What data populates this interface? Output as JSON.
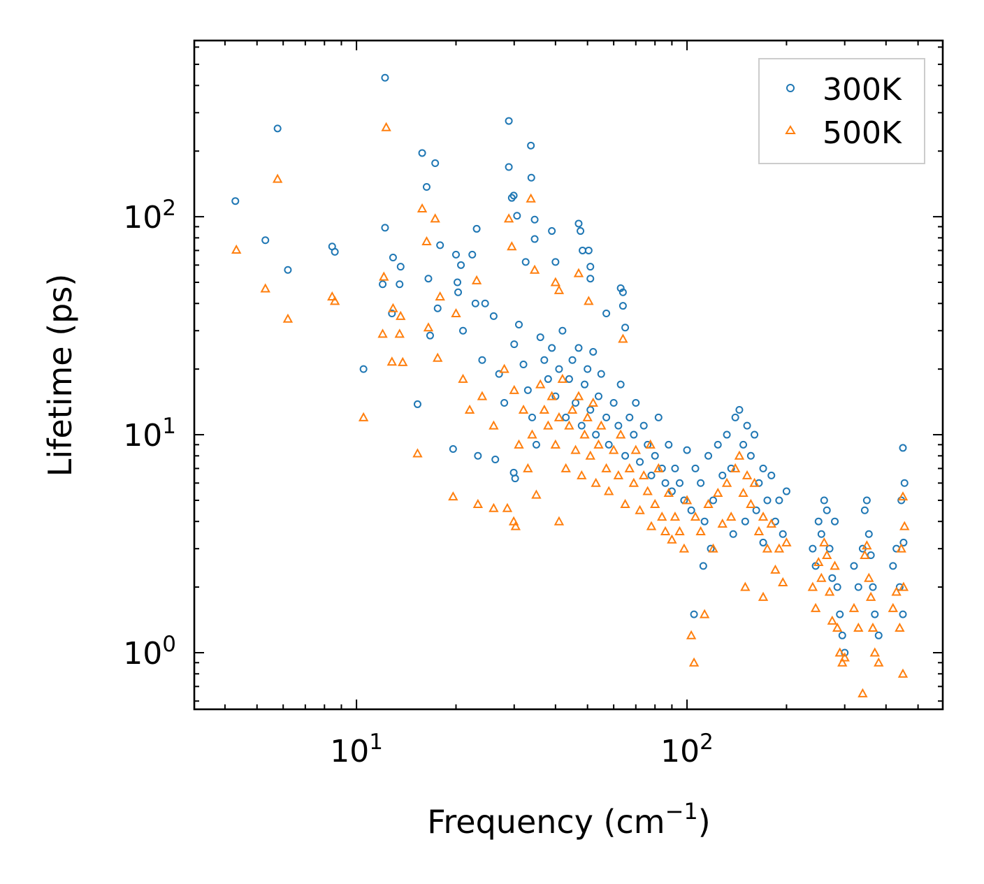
{
  "chart_data": {
    "type": "scatter",
    "title": "",
    "xlabel": "Frequency (cm",
    "xlabel_sup": "−1",
    "xlabel_close": ")",
    "ylabel": "Lifetime (ps)",
    "xscale": "log",
    "yscale": "log",
    "xlim": [
      3.23,
      594
    ],
    "ylim": [
      0.55,
      643
    ],
    "grid": false,
    "legend_position": "top-right",
    "x_ticks": [
      {
        "value": 10,
        "base": "10",
        "exp": "1"
      },
      {
        "value": 100,
        "base": "10",
        "exp": "2"
      }
    ],
    "y_ticks": [
      {
        "value": 1,
        "base": "10",
        "exp": "0"
      },
      {
        "value": 10,
        "base": "10",
        "exp": "1"
      },
      {
        "value": 100,
        "base": "10",
        "exp": "2"
      }
    ],
    "series": [
      {
        "name": "300K",
        "color": "#1f77b4",
        "marker": "circle",
        "points": [
          [
            4.3,
            118
          ],
          [
            5.3,
            78
          ],
          [
            5.77,
            254
          ],
          [
            6.2,
            57
          ],
          [
            8.44,
            73
          ],
          [
            8.6,
            69
          ],
          [
            10.5,
            20
          ],
          [
            12.2,
            434
          ],
          [
            12.2,
            89
          ],
          [
            12.0,
            49
          ],
          [
            12.9,
            65
          ],
          [
            13.5,
            49
          ],
          [
            13.6,
            59
          ],
          [
            12.8,
            36
          ],
          [
            15.3,
            13.8
          ],
          [
            15.8,
            196
          ],
          [
            16.3,
            137
          ],
          [
            16.5,
            52
          ],
          [
            17.3,
            176
          ],
          [
            17.9,
            74
          ],
          [
            16.7,
            28.5
          ],
          [
            17.6,
            38
          ],
          [
            19.6,
            8.6
          ],
          [
            20,
            67
          ],
          [
            20.7,
            60
          ],
          [
            20.2,
            50
          ],
          [
            20.3,
            45
          ],
          [
            22.4,
            67
          ],
          [
            23.1,
            88
          ],
          [
            22.9,
            40
          ],
          [
            23.3,
            8.0
          ],
          [
            24.5,
            40
          ],
          [
            28.9,
            275
          ],
          [
            28.9,
            169
          ],
          [
            29.5,
            122
          ],
          [
            29.9,
            125
          ],
          [
            30.6,
            101
          ],
          [
            33.7,
            212
          ],
          [
            33.8,
            151
          ],
          [
            34.6,
            97
          ],
          [
            34.6,
            79
          ],
          [
            32.5,
            62
          ],
          [
            39,
            86
          ],
          [
            40,
            62
          ],
          [
            47,
            93
          ],
          [
            47.6,
            86
          ],
          [
            48.3,
            70
          ],
          [
            50.4,
            70
          ],
          [
            51,
            59
          ],
          [
            51,
            52
          ],
          [
            63,
            47
          ],
          [
            64,
            45
          ],
          [
            64,
            39
          ],
          [
            57,
            36
          ],
          [
            65,
            31
          ],
          [
            29.9,
            6.7
          ],
          [
            30.2,
            6.3
          ],
          [
            26.3,
            7.7
          ],
          [
            21,
            30
          ],
          [
            24,
            22
          ],
          [
            26,
            35
          ],
          [
            27,
            19
          ],
          [
            28,
            14
          ],
          [
            30,
            26
          ],
          [
            31,
            32
          ],
          [
            32,
            21
          ],
          [
            33,
            16
          ],
          [
            34,
            12
          ],
          [
            35,
            9
          ],
          [
            36,
            28
          ],
          [
            37,
            22
          ],
          [
            38,
            18
          ],
          [
            39,
            25
          ],
          [
            40,
            15
          ],
          [
            41,
            20
          ],
          [
            42,
            30
          ],
          [
            43,
            12
          ],
          [
            44,
            18
          ],
          [
            45,
            22
          ],
          [
            46,
            14
          ],
          [
            47,
            25
          ],
          [
            48,
            11
          ],
          [
            49,
            17
          ],
          [
            50,
            20
          ],
          [
            51,
            13
          ],
          [
            52,
            24
          ],
          [
            53,
            10
          ],
          [
            54,
            15
          ],
          [
            55,
            19
          ],
          [
            57,
            12
          ],
          [
            58,
            9
          ],
          [
            60,
            14
          ],
          [
            62,
            11
          ],
          [
            63,
            17
          ],
          [
            65,
            8
          ],
          [
            67,
            12
          ],
          [
            69,
            10
          ],
          [
            70,
            14
          ],
          [
            72,
            7.5
          ],
          [
            74,
            11
          ],
          [
            76,
            9
          ],
          [
            78,
            6.5
          ],
          [
            80,
            8
          ],
          [
            82,
            12
          ],
          [
            84,
            7
          ],
          [
            86,
            6
          ],
          [
            88,
            9
          ],
          [
            90,
            5.5
          ],
          [
            92,
            7
          ],
          [
            95,
            6
          ],
          [
            98,
            5
          ],
          [
            100,
            8.5
          ],
          [
            103,
            4.5
          ],
          [
            106,
            7
          ],
          [
            110,
            6
          ],
          [
            113,
            4
          ],
          [
            116,
            8
          ],
          [
            120,
            5
          ],
          [
            124,
            9
          ],
          [
            128,
            6.5
          ],
          [
            132,
            10
          ],
          [
            136,
            7
          ],
          [
            140,
            12
          ],
          [
            144,
            13
          ],
          [
            148,
            9
          ],
          [
            152,
            11
          ],
          [
            156,
            8
          ],
          [
            160,
            10
          ],
          [
            165,
            6
          ],
          [
            170,
            7
          ],
          [
            175,
            5
          ],
          [
            180,
            6.5
          ],
          [
            185,
            4
          ],
          [
            190,
            5
          ],
          [
            195,
            3.5
          ],
          [
            200,
            5.5
          ],
          [
            105,
            1.5
          ],
          [
            112,
            2.5
          ],
          [
            118,
            3
          ],
          [
            138,
            3.5
          ],
          [
            150,
            4
          ],
          [
            162,
            4.5
          ],
          [
            170,
            3.2
          ],
          [
            240,
            3
          ],
          [
            245,
            2.5
          ],
          [
            250,
            4
          ],
          [
            255,
            3.5
          ],
          [
            260,
            5
          ],
          [
            265,
            4.5
          ],
          [
            270,
            3
          ],
          [
            275,
            2.2
          ],
          [
            280,
            4
          ],
          [
            285,
            2
          ],
          [
            290,
            1.5
          ],
          [
            295,
            1.2
          ],
          [
            300,
            1.0
          ],
          [
            320,
            2.5
          ],
          [
            330,
            2
          ],
          [
            340,
            3
          ],
          [
            345,
            4.5
          ],
          [
            350,
            5
          ],
          [
            355,
            3.5
          ],
          [
            360,
            2.8
          ],
          [
            365,
            2
          ],
          [
            370,
            1.5
          ],
          [
            380,
            1.2
          ],
          [
            420,
            2.5
          ],
          [
            430,
            3
          ],
          [
            440,
            2
          ],
          [
            445,
            5
          ],
          [
            450,
            8.7
          ],
          [
            455,
            6
          ],
          [
            450,
            1.5
          ],
          [
            452,
            3.2
          ]
        ]
      },
      {
        "name": "500K",
        "color": "#ff7f0e",
        "marker": "triangle",
        "points": [
          [
            4.33,
            70.5
          ],
          [
            5.3,
            46.8
          ],
          [
            5.77,
            149
          ],
          [
            6.2,
            34
          ],
          [
            8.44,
            43
          ],
          [
            8.6,
            41
          ],
          [
            10.5,
            12
          ],
          [
            12.3,
            257
          ],
          [
            12.1,
            53
          ],
          [
            12.0,
            29
          ],
          [
            12.8,
            21.6
          ],
          [
            12.9,
            38
          ],
          [
            13.5,
            29
          ],
          [
            13.8,
            21.5
          ],
          [
            13.6,
            35
          ],
          [
            15.3,
            8.2
          ],
          [
            15.8,
            109
          ],
          [
            16.3,
            77
          ],
          [
            17.3,
            98
          ],
          [
            17.9,
            43
          ],
          [
            16.5,
            31
          ],
          [
            17.6,
            22.5
          ],
          [
            19.6,
            5.2
          ],
          [
            20,
            36
          ],
          [
            23.3,
            4.8
          ],
          [
            23.1,
            51
          ],
          [
            26,
            4.6
          ],
          [
            28.6,
            4.6
          ],
          [
            28.9,
            98
          ],
          [
            29.5,
            73
          ],
          [
            29.9,
            4.0
          ],
          [
            30.3,
            3.8
          ],
          [
            33.7,
            121
          ],
          [
            34.6,
            57
          ],
          [
            41,
            4.0
          ],
          [
            40,
            50
          ],
          [
            47,
            55
          ],
          [
            50.4,
            41
          ],
          [
            41,
            46
          ],
          [
            64,
            27.5
          ],
          [
            77.5,
            9
          ],
          [
            21,
            18
          ],
          [
            22,
            13
          ],
          [
            24,
            15
          ],
          [
            26,
            11
          ],
          [
            28,
            20
          ],
          [
            30,
            16
          ],
          [
            31,
            9
          ],
          [
            32,
            13
          ],
          [
            33,
            7
          ],
          [
            34,
            10
          ],
          [
            35,
            5.3
          ],
          [
            36,
            17
          ],
          [
            37,
            13
          ],
          [
            38,
            11
          ],
          [
            39,
            15
          ],
          [
            40,
            9
          ],
          [
            41,
            12
          ],
          [
            42,
            18
          ],
          [
            43,
            7
          ],
          [
            44,
            11
          ],
          [
            45,
            13
          ],
          [
            46,
            8.5
          ],
          [
            47,
            15
          ],
          [
            48,
            6.5
          ],
          [
            49,
            10
          ],
          [
            50,
            12
          ],
          [
            51,
            8
          ],
          [
            52,
            14
          ],
          [
            53,
            6
          ],
          [
            54,
            9
          ],
          [
            55,
            11
          ],
          [
            57,
            7
          ],
          [
            58,
            5.5
          ],
          [
            60,
            8.5
          ],
          [
            62,
            6.5
          ],
          [
            63,
            10
          ],
          [
            65,
            4.8
          ],
          [
            67,
            7
          ],
          [
            69,
            6
          ],
          [
            70,
            8.5
          ],
          [
            72,
            4.5
          ],
          [
            74,
            6.5
          ],
          [
            76,
            5.5
          ],
          [
            78,
            3.8
          ],
          [
            80,
            4.8
          ],
          [
            82,
            7
          ],
          [
            84,
            4.2
          ],
          [
            86,
            3.6
          ],
          [
            88,
            5.4
          ],
          [
            90,
            3.3
          ],
          [
            92,
            4.2
          ],
          [
            95,
            3.6
          ],
          [
            98,
            3
          ],
          [
            100,
            5
          ],
          [
            103,
            1.2
          ],
          [
            105,
            0.9
          ],
          [
            106,
            4.2
          ],
          [
            110,
            3.6
          ],
          [
            113,
            1.5
          ],
          [
            116,
            4.8
          ],
          [
            120,
            3
          ],
          [
            124,
            5.4
          ],
          [
            128,
            3.9
          ],
          [
            132,
            6
          ],
          [
            136,
            4.2
          ],
          [
            140,
            7
          ],
          [
            144,
            8
          ],
          [
            148,
            5.4
          ],
          [
            152,
            6.5
          ],
          [
            156,
            4.8
          ],
          [
            160,
            6
          ],
          [
            165,
            3.6
          ],
          [
            170,
            4.2
          ],
          [
            175,
            3
          ],
          [
            180,
            3.9
          ],
          [
            185,
            2.4
          ],
          [
            190,
            3
          ],
          [
            195,
            2.1
          ],
          [
            200,
            3.2
          ],
          [
            150,
            2
          ],
          [
            170,
            1.8
          ],
          [
            240,
            2
          ],
          [
            245,
            1.6
          ],
          [
            250,
            2.6
          ],
          [
            255,
            2.2
          ],
          [
            260,
            3.2
          ],
          [
            265,
            2.8
          ],
          [
            270,
            1.9
          ],
          [
            275,
            1.4
          ],
          [
            280,
            2.5
          ],
          [
            285,
            1.3
          ],
          [
            290,
            1.0
          ],
          [
            295,
            0.9
          ],
          [
            300,
            0.95
          ],
          [
            320,
            1.6
          ],
          [
            330,
            1.3
          ],
          [
            340,
            0.65
          ],
          [
            345,
            2.8
          ],
          [
            350,
            3.1
          ],
          [
            355,
            2.2
          ],
          [
            360,
            1.8
          ],
          [
            365,
            1.3
          ],
          [
            370,
            1.0
          ],
          [
            380,
            0.9
          ],
          [
            420,
            1.6
          ],
          [
            430,
            1.9
          ],
          [
            440,
            1.3
          ],
          [
            445,
            3
          ],
          [
            450,
            5.2
          ],
          [
            455,
            3.8
          ],
          [
            450,
            0.8
          ],
          [
            452,
            2
          ]
        ]
      }
    ]
  }
}
